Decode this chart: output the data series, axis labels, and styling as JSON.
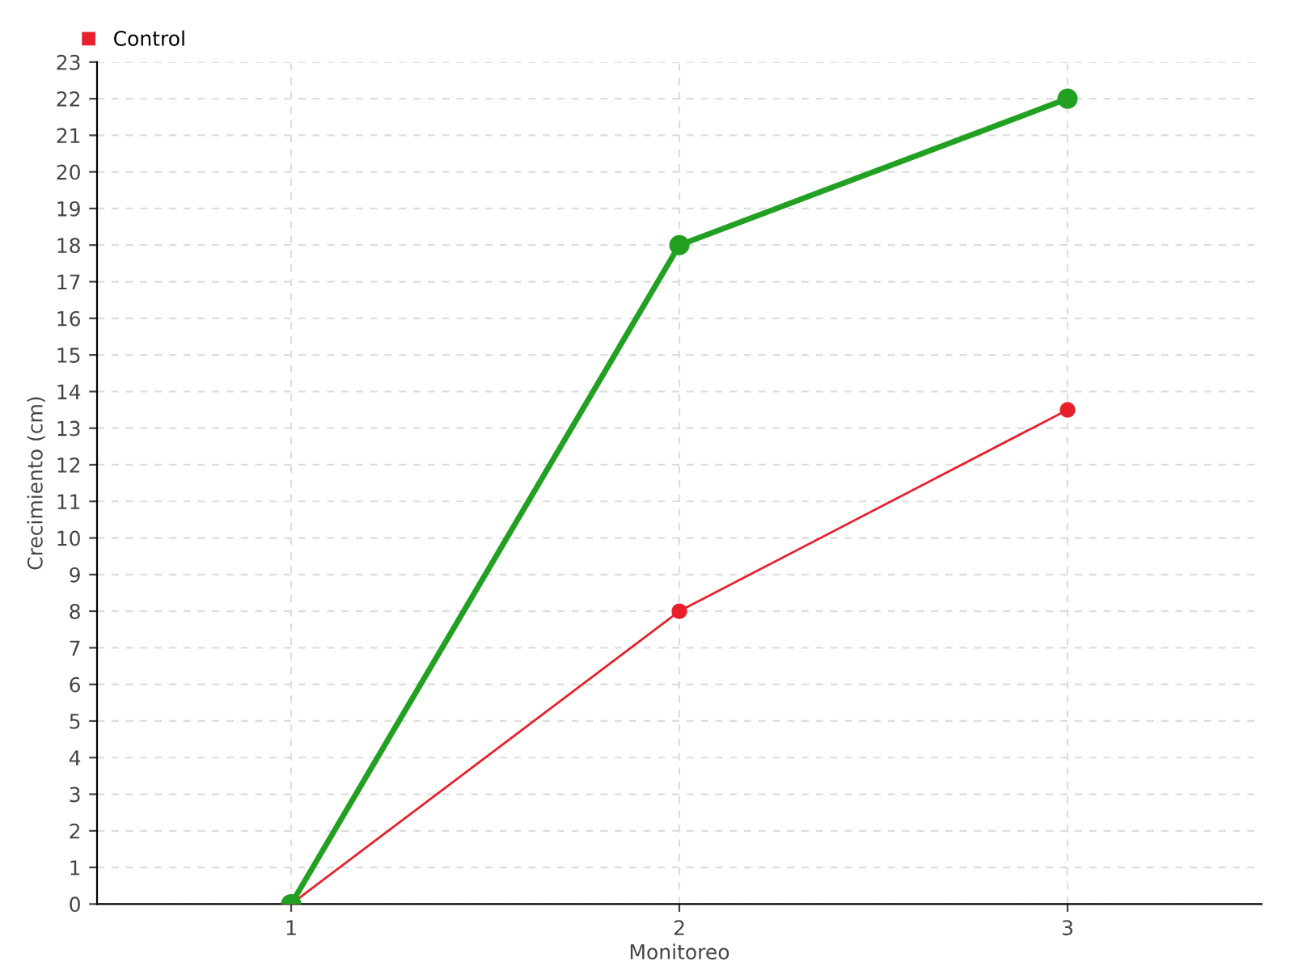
{
  "chart_data": {
    "type": "line",
    "xlabel": "Monitoreo",
    "ylabel": "Crecimiento (cm)",
    "x": [
      1,
      2,
      3
    ],
    "series": [
      {
        "color": "#21a021",
        "values": [
          0,
          18,
          22
        ]
      },
      {
        "name": "Control",
        "color": "#e8202c",
        "values": [
          0,
          8,
          13.5
        ]
      }
    ],
    "xlim": [
      0.5,
      3.5
    ],
    "xticks": [
      1,
      2,
      3
    ],
    "ylim": [
      0,
      23
    ],
    "yticks": [
      0,
      1,
      2,
      3,
      4,
      5,
      6,
      7,
      8,
      9,
      10,
      11,
      12,
      13,
      14,
      15,
      16,
      17,
      18,
      19,
      20,
      21,
      22,
      23
    ],
    "grid": true,
    "legend": "top left",
    "marker": "circle",
    "line_style": "solid"
  }
}
